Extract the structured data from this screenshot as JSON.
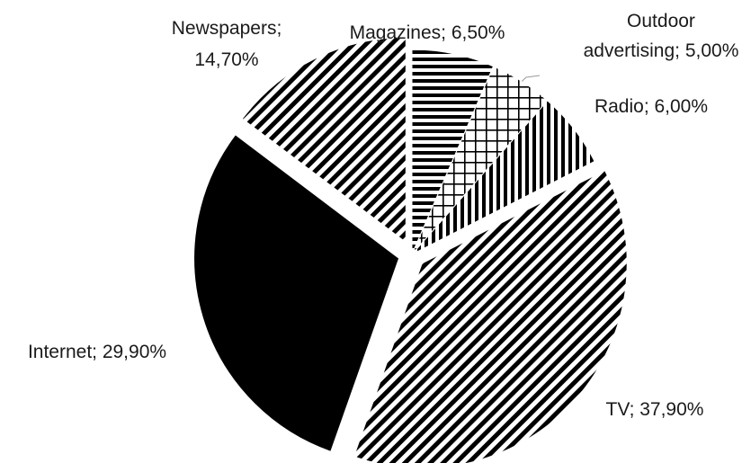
{
  "chart_data": {
    "type": "pie",
    "slices": [
      {
        "label": "Magazines",
        "value": 6.5,
        "text": "Magazines; 6,50%",
        "pattern": "horizontal-lines"
      },
      {
        "label": "Outdoor advertising",
        "value": 5.0,
        "text_lines": [
          "Outdoor",
          "advertising; 5,00%"
        ],
        "pattern": "grid"
      },
      {
        "label": "Radio",
        "value": 6.0,
        "text": "Radio;  6,00%",
        "pattern": "vertical-lines"
      },
      {
        "label": "TV",
        "value": 37.9,
        "text": "TV; 37,90%",
        "pattern": "diagonal-lines"
      },
      {
        "label": "Internet",
        "value": 29.9,
        "text": "Internet; 29,90%",
        "pattern": "solid"
      },
      {
        "label": "Newspapers",
        "value": 14.7,
        "text_lines": [
          "Newspapers;",
          "14,70%"
        ],
        "pattern": "diagonal-lines"
      }
    ],
    "start": "12 o'clock",
    "direction": "clockwise",
    "exploded_slices": [
      "TV",
      "Internet",
      "Newspapers"
    ],
    "legend": "none",
    "colors": {
      "ink": "#000000",
      "background": "#ffffff"
    }
  }
}
